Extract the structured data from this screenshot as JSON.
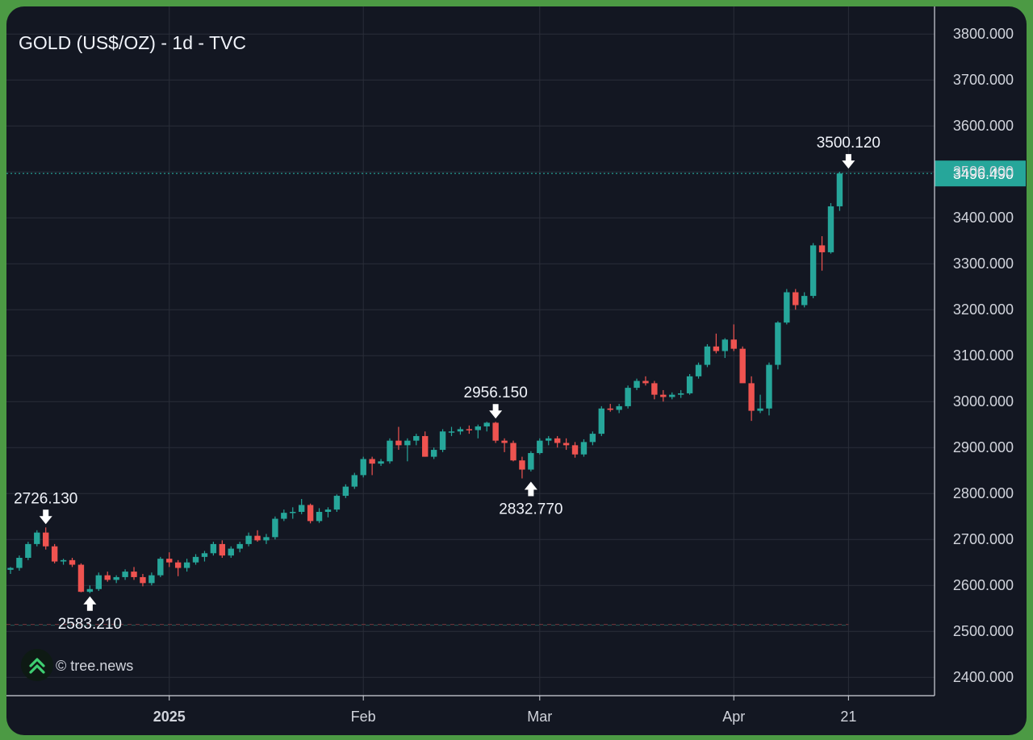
{
  "chart_title": "GOLD (US$/OZ) - 1d - TVC",
  "watermark": "© tree.news",
  "colors": {
    "up": "#26a69a",
    "down": "#ef5350",
    "background": "#131722",
    "grid": "#2a2e39",
    "text": "#d1d4dc"
  },
  "chart_data": {
    "type": "candlestick",
    "title": "GOLD (US$/OZ) - 1d - TVC",
    "ylim": [
      2360,
      3860
    ],
    "yticks": [
      "2400.000",
      "2500.000",
      "2600.000",
      "2700.000",
      "2800.000",
      "2900.000",
      "3000.000",
      "3100.000",
      "3200.000",
      "3300.000",
      "3400.000",
      "3500.000",
      "3600.000",
      "3700.000",
      "3800.000"
    ],
    "xticks": [
      {
        "label": "2025",
        "bold": true,
        "index": 18
      },
      {
        "label": "Feb",
        "bold": false,
        "index": 40
      },
      {
        "label": "Mar",
        "bold": false,
        "index": 60
      },
      {
        "label": "Apr",
        "bold": false,
        "index": 82
      },
      {
        "label": "21",
        "bold": false,
        "index": 95
      }
    ],
    "last_price": "3496.490",
    "last_value": 3496.49,
    "annotations": [
      {
        "label": "2726.130",
        "value": 2726.13,
        "index": 4,
        "type": "high"
      },
      {
        "label": "2583.210",
        "value": 2583.21,
        "index": 9,
        "type": "low"
      },
      {
        "label": "2956.150",
        "value": 2956.15,
        "index": 55,
        "type": "high"
      },
      {
        "label": "2832.770",
        "value": 2832.77,
        "index": 59,
        "type": "low"
      },
      {
        "label": "3500.120",
        "value": 3500.12,
        "index": 95,
        "type": "high"
      }
    ],
    "candles": [
      [
        2634,
        2640,
        2625,
        2638
      ],
      [
        2638,
        2665,
        2632,
        2660
      ],
      [
        2660,
        2695,
        2655,
        2690
      ],
      [
        2690,
        2720,
        2685,
        2715
      ],
      [
        2715,
        2726.13,
        2678,
        2685
      ],
      [
        2685,
        2690,
        2648,
        2652
      ],
      [
        2652,
        2658,
        2645,
        2655
      ],
      [
        2655,
        2660,
        2640,
        2645
      ],
      [
        2645,
        2648,
        2585,
        2586
      ],
      [
        2586,
        2600,
        2583.21,
        2592
      ],
      [
        2592,
        2628,
        2588,
        2622
      ],
      [
        2622,
        2630,
        2608,
        2612
      ],
      [
        2612,
        2622,
        2605,
        2618
      ],
      [
        2618,
        2635,
        2612,
        2630
      ],
      [
        2630,
        2640,
        2612,
        2618
      ],
      [
        2618,
        2625,
        2598,
        2605
      ],
      [
        2605,
        2628,
        2600,
        2622
      ],
      [
        2622,
        2662,
        2618,
        2658
      ],
      [
        2658,
        2672,
        2640,
        2650
      ],
      [
        2650,
        2655,
        2620,
        2638
      ],
      [
        2638,
        2658,
        2630,
        2650
      ],
      [
        2650,
        2668,
        2645,
        2662
      ],
      [
        2662,
        2675,
        2652,
        2670
      ],
      [
        2670,
        2695,
        2665,
        2690
      ],
      [
        2690,
        2698,
        2660,
        2665
      ],
      [
        2665,
        2685,
        2660,
        2680
      ],
      [
        2680,
        2695,
        2672,
        2690
      ],
      [
        2690,
        2715,
        2685,
        2708
      ],
      [
        2708,
        2720,
        2695,
        2698
      ],
      [
        2698,
        2712,
        2690,
        2705
      ],
      [
        2705,
        2750,
        2700,
        2745
      ],
      [
        2745,
        2765,
        2740,
        2758
      ],
      [
        2758,
        2770,
        2745,
        2760
      ],
      [
        2760,
        2788,
        2755,
        2775
      ],
      [
        2775,
        2778,
        2735,
        2740
      ],
      [
        2740,
        2768,
        2736,
        2760
      ],
      [
        2760,
        2770,
        2748,
        2765
      ],
      [
        2765,
        2798,
        2760,
        2795
      ],
      [
        2795,
        2820,
        2790,
        2815
      ],
      [
        2815,
        2845,
        2810,
        2840
      ],
      [
        2840,
        2880,
        2835,
        2875
      ],
      [
        2875,
        2880,
        2840,
        2865
      ],
      [
        2865,
        2875,
        2860,
        2870
      ],
      [
        2870,
        2920,
        2865,
        2915
      ],
      [
        2915,
        2945,
        2895,
        2905
      ],
      [
        2905,
        2920,
        2870,
        2915
      ],
      [
        2915,
        2930,
        2905,
        2925
      ],
      [
        2925,
        2935,
        2880,
        2880
      ],
      [
        2880,
        2900,
        2875,
        2895
      ],
      [
        2895,
        2940,
        2890,
        2935
      ],
      [
        2935,
        2945,
        2925,
        2935
      ],
      [
        2935,
        2945,
        2928,
        2940
      ],
      [
        2940,
        2948,
        2930,
        2938
      ],
      [
        2938,
        2950,
        2920,
        2946
      ],
      [
        2946,
        2956.15,
        2935,
        2954
      ],
      [
        2954,
        2956,
        2910,
        2915
      ],
      [
        2915,
        2920,
        2890,
        2910
      ],
      [
        2910,
        2915,
        2870,
        2872
      ],
      [
        2872,
        2880,
        2832.77,
        2852
      ],
      [
        2852,
        2892,
        2848,
        2888
      ],
      [
        2888,
        2920,
        2885,
        2915
      ],
      [
        2915,
        2925,
        2905,
        2920
      ],
      [
        2920,
        2925,
        2900,
        2910
      ],
      [
        2910,
        2920,
        2895,
        2905
      ],
      [
        2905,
        2912,
        2878,
        2885
      ],
      [
        2885,
        2918,
        2880,
        2912
      ],
      [
        2912,
        2935,
        2905,
        2930
      ],
      [
        2930,
        2990,
        2925,
        2985
      ],
      [
        2985,
        2995,
        2978,
        2982
      ],
      [
        2982,
        2995,
        2975,
        2990
      ],
      [
        2990,
        3035,
        2985,
        3030
      ],
      [
        3030,
        3050,
        3025,
        3045
      ],
      [
        3045,
        3055,
        3035,
        3040
      ],
      [
        3040,
        3045,
        3005,
        3015
      ],
      [
        3015,
        3025,
        3000,
        3010
      ],
      [
        3010,
        3020,
        3005,
        3015
      ],
      [
        3015,
        3025,
        3008,
        3018
      ],
      [
        3018,
        3060,
        3015,
        3055
      ],
      [
        3055,
        3085,
        3050,
        3080
      ],
      [
        3080,
        3125,
        3075,
        3120
      ],
      [
        3120,
        3148,
        3105,
        3110
      ],
      [
        3110,
        3138,
        3095,
        3135
      ],
      [
        3135,
        3168,
        3110,
        3115
      ],
      [
        3115,
        3120,
        3050,
        3040
      ],
      [
        3040,
        3055,
        2958,
        2980
      ],
      [
        2980,
        3015,
        2975,
        2985
      ],
      [
        2985,
        3085,
        2970,
        3080
      ],
      [
        3080,
        3175,
        3070,
        3172
      ],
      [
        3172,
        3245,
        3168,
        3238
      ],
      [
        3238,
        3245,
        3200,
        3210
      ],
      [
        3210,
        3238,
        3205,
        3230
      ],
      [
        3230,
        3345,
        3225,
        3340
      ],
      [
        3340,
        3360,
        3285,
        3325
      ],
      [
        3325,
        3432,
        3322,
        3425
      ],
      [
        3425,
        3500.12,
        3415,
        3496.49
      ]
    ]
  }
}
